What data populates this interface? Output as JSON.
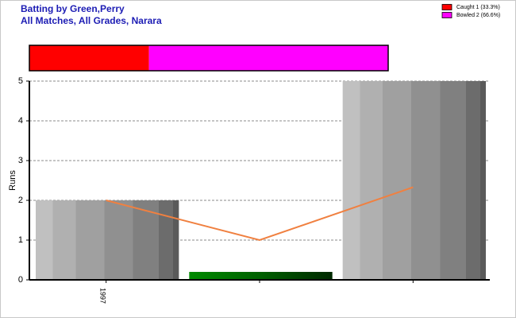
{
  "header": {
    "title": "Batting by Green,Perry",
    "subtitle": "All Matches, All Grades, Narara"
  },
  "chart_data": [
    {
      "type": "stacked-bar",
      "series": [
        {
          "name": "Caught 1 (33.3%)",
          "color": "#ff0000",
          "values": [
            33.3
          ]
        },
        {
          "name": "Bowled 2 (66.6%)",
          "color": "#ff00ff",
          "values": [
            66.6
          ]
        }
      ],
      "xlim": [
        0,
        99.9
      ],
      "legend": "top-right"
    },
    {
      "type": "bar",
      "y_label": "Runs",
      "categories": [
        "1997",
        null,
        null
      ],
      "values": [
        2,
        0.2,
        5
      ],
      "colors": [
        "#a0a0a0",
        "#008000",
        "#a0a0a0"
      ],
      "line": {
        "color": "#f08040",
        "values": [
          2,
          1,
          2.33
        ]
      },
      "ylim": [
        0,
        5
      ],
      "yticks": [
        0,
        1,
        2,
        3,
        4,
        5
      ],
      "grid": true
    }
  ]
}
